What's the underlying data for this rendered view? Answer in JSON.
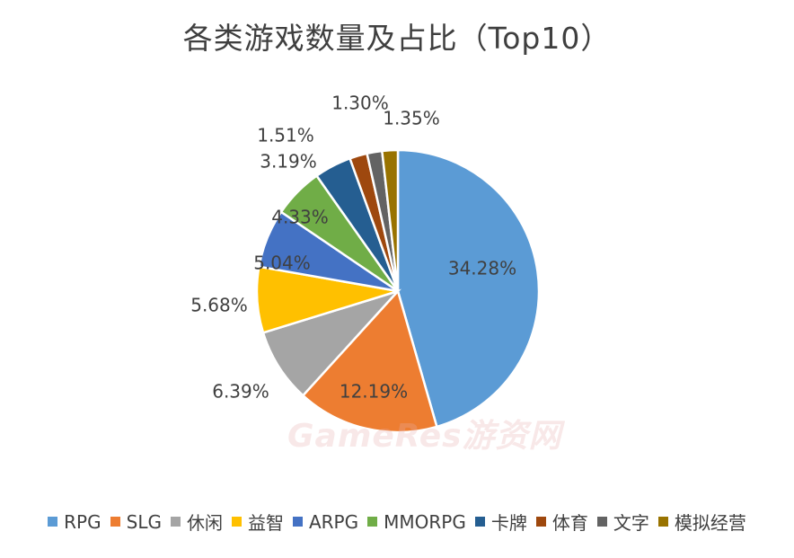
{
  "chart_data": {
    "type": "pie",
    "title": "各类游戏数量及占比（Top10）",
    "categories": [
      "RPG",
      "SLG",
      "休闲",
      "益智",
      "ARPG",
      "MMORPG",
      "卡牌",
      "体育",
      "文字",
      "模拟经营"
    ],
    "values": [
      34.28,
      12.19,
      6.39,
      5.68,
      5.04,
      4.33,
      3.19,
      1.51,
      1.3,
      1.35
    ],
    "labels": [
      "34.28%",
      "12.19%",
      "6.39%",
      "5.68%",
      "5.04%",
      "4.33%",
      "3.19%",
      "1.51%",
      "1.30%",
      "1.35%"
    ],
    "colors": [
      "#5b9bd5",
      "#ed7d31",
      "#a5a5a5",
      "#ffc000",
      "#4472c4",
      "#70ad47",
      "#255e91",
      "#9e480e",
      "#636363",
      "#997300"
    ],
    "legend_position": "bottom",
    "start_angle": "top",
    "direction": "clockwise"
  },
  "watermark": "GameRes游资网"
}
